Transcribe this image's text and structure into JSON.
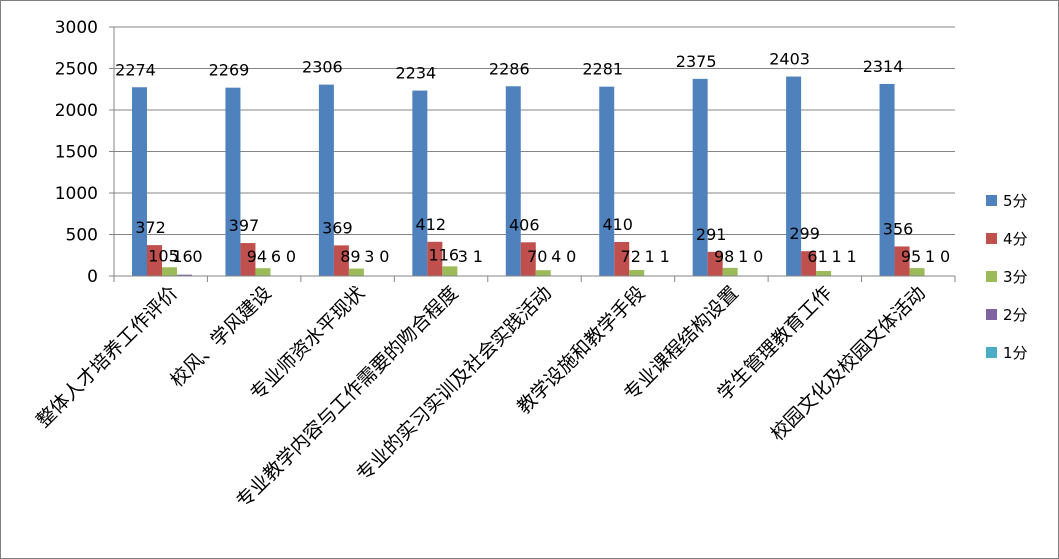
{
  "chart_data": {
    "type": "bar",
    "categories": [
      "整体人才培养工作评价",
      "校风、学风建设",
      "专业师资水平现状",
      "专业教学内容与工作需要的吻合程度",
      "专业的实习实训及社会实践活动",
      "教学设施和教学手段",
      "专业课程结构设置",
      "学生管理教育工作",
      "校园文化及校园文体活动"
    ],
    "series": [
      {
        "name": "5分",
        "color": "#4F81BD",
        "values": [
          2274,
          2269,
          2306,
          2234,
          2286,
          2281,
          2375,
          2403,
          2314
        ]
      },
      {
        "name": "4分",
        "color": "#C0504D",
        "values": [
          372,
          397,
          369,
          412,
          406,
          410,
          291,
          299,
          356
        ]
      },
      {
        "name": "3分",
        "color": "#9BBB59",
        "values": [
          105,
          94,
          89,
          116,
          70,
          72,
          98,
          61,
          95
        ]
      },
      {
        "name": "2分",
        "color": "#8064A2",
        "values": [
          16,
          6,
          3,
          3,
          4,
          1,
          1,
          1,
          1
        ]
      },
      {
        "name": "1分",
        "color": "#4BACC6",
        "values": [
          0,
          0,
          0,
          1,
          0,
          1,
          0,
          1,
          0
        ]
      }
    ],
    "ylim": [
      0,
      3000
    ],
    "yticks": [
      0,
      500,
      1000,
      1500,
      2000,
      2500,
      3000
    ],
    "grid": true,
    "legend": "right",
    "title": "",
    "xlabel": "",
    "ylabel": ""
  }
}
